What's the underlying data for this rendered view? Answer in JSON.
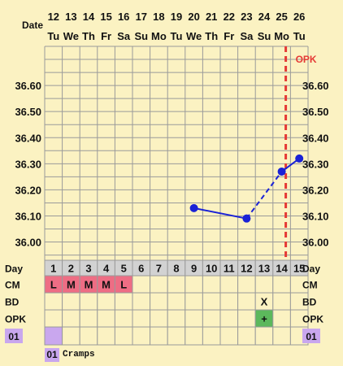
{
  "chart_data": {
    "type": "line",
    "corner_label": "Date",
    "dates": [
      "12",
      "13",
      "14",
      "15",
      "16",
      "17",
      "18",
      "19",
      "20",
      "21",
      "22",
      "23",
      "24",
      "25",
      "26"
    ],
    "weekdays": [
      "Tu",
      "We",
      "Th",
      "Fr",
      "Sa",
      "Su",
      "Mo",
      "Tu",
      "We",
      "Th",
      "Fr",
      "Sa",
      "Su",
      "Mo",
      "Tu"
    ],
    "y_ticks": [
      "36.60",
      "36.50",
      "36.40",
      "36.30",
      "36.20",
      "36.10",
      "36.00"
    ],
    "ylim": [
      35.93,
      36.75
    ],
    "temps": [
      {
        "day": 9,
        "value": 36.13
      },
      {
        "day": 12,
        "value": 36.09
      },
      {
        "day": 14,
        "value": 36.27
      },
      {
        "day": 15,
        "value": 36.32
      }
    ],
    "segments": [
      {
        "from_day": 9,
        "to_day": 12,
        "style": "solid"
      },
      {
        "from_day": 12,
        "to_day": 14,
        "style": "dashed"
      },
      {
        "from_day": 14,
        "to_day": 15,
        "style": "solid"
      }
    ],
    "marker": {
      "day": 14,
      "label": "OPK",
      "color": "#E53935"
    },
    "day_row": {
      "label": "Day",
      "values": [
        "1",
        "2",
        "3",
        "4",
        "5",
        "6",
        "7",
        "8",
        "9",
        "10",
        "11",
        "12",
        "13",
        "14",
        "15"
      ]
    },
    "cm_row": {
      "label": "CM",
      "values": [
        "L",
        "M",
        "M",
        "M",
        "L",
        "",
        "",
        "",
        "",
        "",
        "",
        "",
        "",
        "",
        ""
      ],
      "color": "#EE6D84"
    },
    "bd_row": {
      "label": "BD",
      "values": [
        "",
        "",
        "",
        "",
        "",
        "",
        "",
        "",
        "",
        "",
        "",
        "",
        "X",
        "",
        ""
      ]
    },
    "opk_row": {
      "label": "OPK",
      "values": [
        "",
        "",
        "",
        "",
        "",
        "",
        "",
        "",
        "",
        "",
        "",
        "",
        "+",
        "",
        ""
      ],
      "color": "#5CB85C"
    },
    "note_row": {
      "label": "01",
      "filled_day": 1,
      "color": "#C9A7EE"
    },
    "colors": {
      "background": "#FBF2C2",
      "grid": "#9A9A9A",
      "line": "#1A22D6",
      "point": "#1A22D6",
      "header_row": "#D2D2D2"
    }
  },
  "notes": [
    {
      "badge": "01",
      "text": "Cramps"
    }
  ]
}
